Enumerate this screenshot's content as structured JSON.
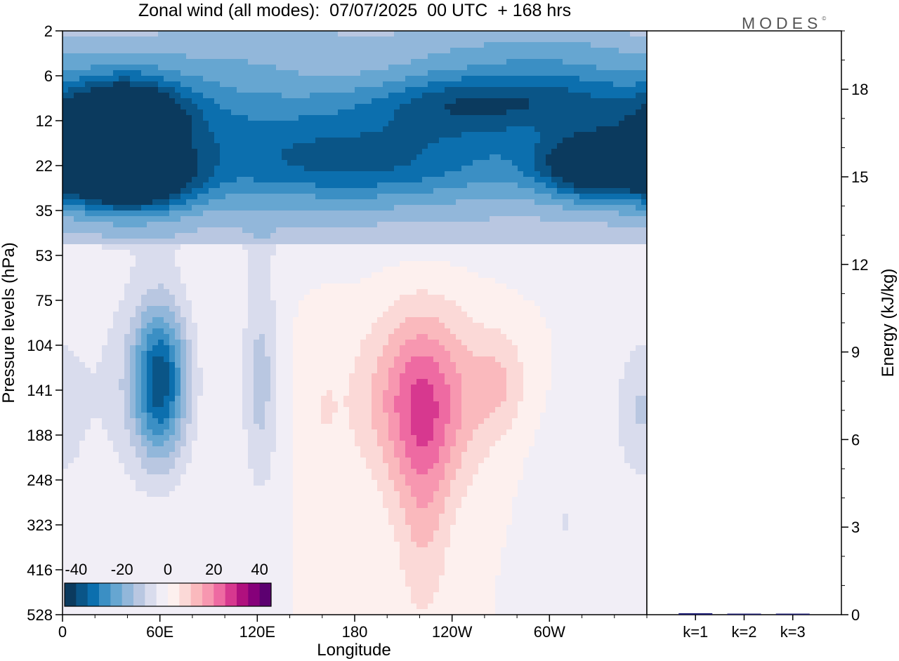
{
  "title": "Zonal wind (all modes):  07/07/2025  00 UTC  + 168 hrs",
  "logo": "MODES",
  "logo_mark": "©",
  "colors": {
    "scale": [
      "#0b3a5e",
      "#0a5587",
      "#0c6fae",
      "#3b8fc4",
      "#66a6d1",
      "#92b7da",
      "#b9c7e1",
      "#d9dced",
      "#f1eef6",
      "#fdf0ee",
      "#fbd9d7",
      "#fab9bd",
      "#f797b0",
      "#ee6aa2",
      "#d7388f",
      "#b0107e",
      "#86007a",
      "#5c0070"
    ],
    "bar": "#1a1a6e"
  },
  "chart_data": [
    {
      "type": "heatmap",
      "title": "Zonal wind (all modes):  07/07/2025  00 UTC  + 168 hrs",
      "xlabel": "Longitude",
      "ylabel": "Pressure levels (hPa)",
      "x_ticks": [
        "0",
        "60E",
        "120E",
        "180",
        "120W",
        "60W"
      ],
      "x_tick_values": [
        0,
        60,
        120,
        180,
        240,
        300
      ],
      "xlim": [
        0,
        360
      ],
      "y_ticks": [
        "2",
        "6",
        "12",
        "22",
        "35",
        "53",
        "75",
        "104",
        "141",
        "188",
        "248",
        "323",
        "416",
        "528"
      ],
      "colorbar": {
        "ticks": [
          "-40",
          "-20",
          "0",
          "20",
          "40"
        ],
        "range": [
          -45,
          45
        ],
        "step": 5
      },
      "features": [
        {
          "lon": 130,
          "level": 2.2,
          "value": -20,
          "sx": 260,
          "sy": 1.4
        },
        {
          "lon": 35,
          "level": 2.0,
          "value": -30,
          "sx": 30,
          "sy": 0.6
        },
        {
          "lon": 250,
          "level": 1.6,
          "value": -15,
          "sx": 40,
          "sy": 0.5
        },
        {
          "lon": 310,
          "level": 1.4,
          "value": -10,
          "sx": 30,
          "sy": 0.5
        },
        {
          "lon": 180,
          "level": 0.8,
          "value": 4,
          "sx": 40,
          "sy": 0.5
        },
        {
          "lon": 40,
          "level": 1.6,
          "value": -8,
          "sx": 20,
          "sy": 0.5
        },
        {
          "lon": 170,
          "level": 0.4,
          "value": -3,
          "sx": 80,
          "sy": 0.4
        },
        {
          "lon": 300,
          "level": 0.4,
          "value": -5,
          "sx": 40,
          "sy": 0.3
        },
        {
          "lon": 40,
          "level": 3.3,
          "value": -40,
          "sx": 28,
          "sy": 0.5
        },
        {
          "lon": 330,
          "level": 3.0,
          "value": -35,
          "sx": 25,
          "sy": 0.5
        },
        {
          "lon": 180,
          "level": 3.0,
          "value": -12,
          "sx": 60,
          "sy": 0.6
        },
        {
          "lon": 60,
          "level": 7.8,
          "value": -36,
          "sx": 12,
          "sy": 1.2
        },
        {
          "lon": 122,
          "level": 7.8,
          "value": -12,
          "sx": 8,
          "sy": 1.8
        },
        {
          "lon": 222,
          "level": 8.2,
          "value": 22,
          "sx": 25,
          "sy": 1.4
        },
        {
          "lon": 222,
          "level": 10.5,
          "value": 10,
          "sx": 12,
          "sy": 2.0
        },
        {
          "lon": 270,
          "level": 7.8,
          "value": 8,
          "sx": 12,
          "sy": 0.8
        },
        {
          "lon": 160,
          "level": 8.5,
          "value": 4,
          "sx": 10,
          "sy": 1.5
        },
        {
          "lon": 310,
          "level": 11.0,
          "value": -5,
          "sx": 15,
          "sy": 1.5
        },
        {
          "lon": 355,
          "level": 8.5,
          "value": -8,
          "sx": 10,
          "sy": 1.0
        },
        {
          "lon": 30,
          "level": 8.0,
          "value": -5,
          "sx": 30,
          "sy": 2.0
        }
      ],
      "base_value": 0,
      "upper_band": {
        "from_level": 0,
        "to_level": 4.8,
        "value": -8
      }
    },
    {
      "type": "bar",
      "categories": [
        "k=1",
        "k=2",
        "k=3"
      ],
      "values": [
        0.05,
        0.02,
        0.01
      ],
      "ylabel": "Energy (kJ/kg)",
      "y_ticks": [
        "0",
        "3",
        "6",
        "9",
        "12",
        "15",
        "18"
      ],
      "y_tick_values": [
        0,
        3,
        6,
        9,
        12,
        15,
        18
      ],
      "ylim": [
        0,
        20
      ]
    }
  ]
}
